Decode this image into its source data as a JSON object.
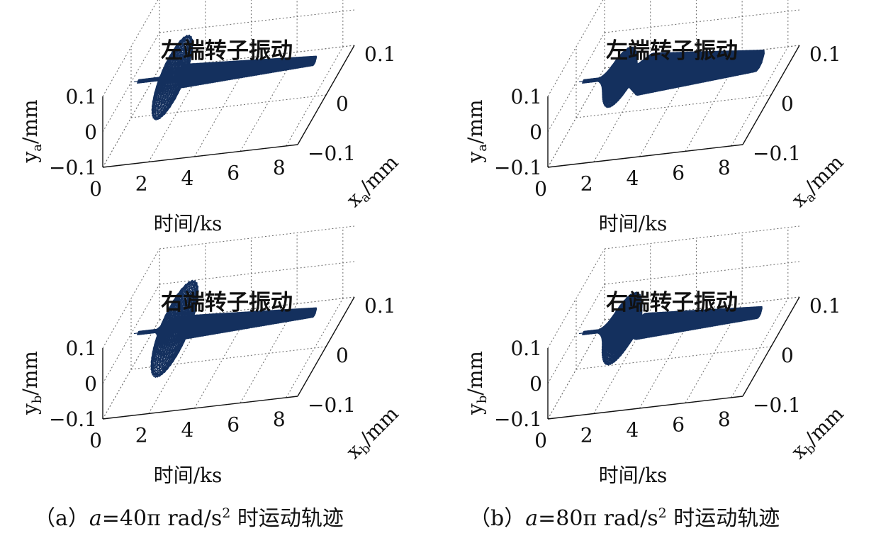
{
  "chart_data": [
    {
      "id": "a-left",
      "type": "3d-trajectory",
      "title": "左端转子振动",
      "xlabel": "时间/ks",
      "ylabel": {
        "main": "y",
        "sub": "a",
        "unit": "/mm"
      },
      "zlabel": {
        "main": "x",
        "sub": "a",
        "unit": "/mm"
      },
      "x_ticks": [
        "0",
        "2",
        "4",
        "6",
        "8"
      ],
      "y_ticks": [
        "0.1",
        "0",
        "−0.1"
      ],
      "z_ticks": [
        "0.1",
        "0",
        "−0.1"
      ],
      "xlim": [
        0,
        8.5
      ],
      "ylim": [
        -0.1,
        0.1
      ],
      "zlim": [
        -0.1,
        0.1
      ],
      "color": "#14305e",
      "trajectory": {
        "start_t": 0.3,
        "start_amp": 0.003,
        "resonance_t": 1.8,
        "resonance_amp": 0.07,
        "resonance_width": 0.35,
        "post_t": 2.4,
        "post_amp": 0.02,
        "tail_amp": 0.008,
        "end_t": 8.0
      }
    },
    {
      "id": "b-left",
      "type": "3d-trajectory",
      "title": "左端转子振动",
      "xlabel": "时间/ks",
      "ylabel": {
        "main": "y",
        "sub": "a",
        "unit": "/mm"
      },
      "zlabel": {
        "main": "x",
        "sub": "a",
        "unit": "/mm"
      },
      "x_ticks": [
        "0",
        "2",
        "4",
        "6",
        "8"
      ],
      "y_ticks": [
        "0.1",
        "0",
        "−0.1"
      ],
      "z_ticks": [
        "0.1",
        "0",
        "−0.1"
      ],
      "xlim": [
        0,
        8.5
      ],
      "ylim": [
        -0.1,
        0.1
      ],
      "zlim": [
        -0.1,
        0.1
      ],
      "color": "#14305e",
      "trajectory": {
        "start_t": 0.3,
        "start_amp": 0.003,
        "resonance_t": 1.9,
        "resonance_amp": 0.05,
        "resonance_width": 0.55,
        "post_t": 3.0,
        "post_amp": 0.035,
        "tail_amp": 0.018,
        "end_t": 8.0
      }
    },
    {
      "id": "a-right",
      "type": "3d-trajectory",
      "title": "右端转子振动",
      "xlabel": "时间/ks",
      "ylabel": {
        "main": "y",
        "sub": "b",
        "unit": "/mm"
      },
      "zlabel": {
        "main": "x",
        "sub": "b",
        "unit": "/mm"
      },
      "x_ticks": [
        "0",
        "2",
        "4",
        "6",
        "8"
      ],
      "y_ticks": [
        "0.1",
        "0",
        "−0.1"
      ],
      "z_ticks": [
        "0.1",
        "0",
        "−0.1"
      ],
      "xlim": [
        0,
        8.5
      ],
      "ylim": [
        -0.1,
        0.1
      ],
      "zlim": [
        -0.1,
        0.1
      ],
      "color": "#14305e",
      "trajectory": {
        "start_t": 0.3,
        "start_amp": 0.003,
        "resonance_t": 1.9,
        "resonance_amp": 0.08,
        "resonance_width": 0.45,
        "post_t": 2.5,
        "post_amp": 0.02,
        "tail_amp": 0.008,
        "end_t": 8.0
      }
    },
    {
      "id": "b-right",
      "type": "3d-trajectory",
      "title": "右端转子振动",
      "xlabel": "时间/ks",
      "ylabel": {
        "main": "y",
        "sub": "b",
        "unit": "/mm"
      },
      "zlabel": {
        "main": "x",
        "sub": "b",
        "unit": "/mm"
      },
      "x_ticks": [
        "0",
        "2",
        "4",
        "6",
        "8"
      ],
      "y_ticks": [
        "0.1",
        "0",
        "−0.1"
      ],
      "z_ticks": [
        "0.1",
        "0",
        "−0.1"
      ],
      "xlim": [
        0,
        8.5
      ],
      "ylim": [
        -0.1,
        0.1
      ],
      "zlim": [
        -0.1,
        0.1
      ],
      "color": "#14305e",
      "trajectory": {
        "start_t": 0.3,
        "start_amp": 0.003,
        "resonance_t": 2.0,
        "resonance_amp": 0.06,
        "resonance_width": 0.6,
        "post_t": 2.8,
        "post_amp": 0.022,
        "tail_amp": 0.01,
        "end_t": 8.0
      }
    }
  ],
  "captions": {
    "a": {
      "prefix": "（a）",
      "var": "a",
      "value": "=40π rad/s",
      "sup": "2",
      "suffix": " 时运动轨迹"
    },
    "b": {
      "prefix": "（b）",
      "var": "a",
      "value": "=80π rad/s",
      "sup": "2",
      "suffix": " 时运动轨迹"
    }
  }
}
